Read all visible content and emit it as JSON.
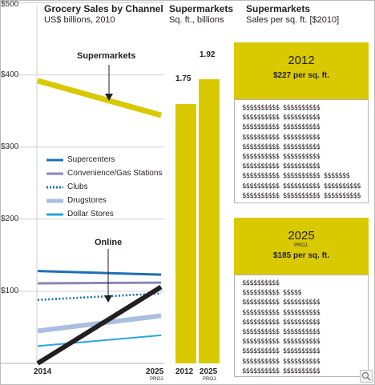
{
  "left_chart": {
    "title": "Grocery Sales by Channel",
    "subtitle": "US$ billions, 2010",
    "annotation_supermarkets": "Supermarkets",
    "annotation_online": "Online",
    "x_start_label": "2014",
    "x_end_label": "2025",
    "x_end_sub": "PROJ."
  },
  "middle_chart": {
    "title": "Supermarkets",
    "subtitle": "Sq. ft., billions",
    "bar1_label": "1.75",
    "bar2_label": "1.92",
    "x1_label": "2012",
    "x2_label": "2025",
    "x2_sub": "PROJ."
  },
  "right_panel": {
    "title": "Supermarkets",
    "subtitle": "Sales per sq. ft. [$2010]",
    "box1_year": "2012",
    "box1_value": "$227 per sq. ft.",
    "box1_symbols": [
      "$$$$$$$$$$ $$$$$$$$$$",
      "$$$$$$$$$$ $$$$$$$$$$",
      "$$$$$$$$$$ $$$$$$$$$$",
      "$$$$$$$$$$ $$$$$$$$$$",
      "$$$$$$$$$$ $$$$$$$$$$",
      "$$$$$$$$$$ $$$$$$$$$$",
      "$$$$$$$$$$ $$$$$$$$$$",
      "$$$$$$$$$$ $$$$$$$$$$ $$$$$$$",
      "$$$$$$$$$$ $$$$$$$$$$ $$$$$$$$$$",
      "$$$$$$$$$$ $$$$$$$$$$ $$$$$$$$$$"
    ],
    "box2_year": "2025",
    "box2_proj": "PROJ.",
    "box2_value": "$185 per sq. ft.",
    "box2_symbols": [
      "$$$$$$$$$$",
      "$$$$$$$$$$ $$$$$",
      "$$$$$$$$$$ $$$$$$$$$$",
      "$$$$$$$$$$ $$$$$$$$$$",
      "$$$$$$$$$$ $$$$$$$$$$",
      "$$$$$$$$$$ $$$$$$$$$$",
      "$$$$$$$$$$ $$$$$$$$$$",
      "$$$$$$$$$$ $$$$$$$$$$",
      "$$$$$$$$$$ $$$$$$$$$$",
      "$$$$$$$$$$ $$$$$$$$$$"
    ]
  },
  "colors": {
    "supermarkets": "#d9c900",
    "supercenters": "#1f6fb2",
    "convenience": "#8e86b5",
    "clubs": "#1f6fb2",
    "drugstores": "#a9bfdf",
    "dollar_stores": "#2aa6dc",
    "online": "#231f20"
  },
  "chart_data": [
    {
      "type": "line",
      "title": "Grocery Sales by Channel",
      "subtitle": "US$ billions, 2010",
      "x": [
        "2014",
        "2025 PROJ."
      ],
      "ylim": [
        0,
        500
      ],
      "yticks": [
        "$500",
        "$400",
        "$300",
        "$200",
        "$100"
      ],
      "grid": true,
      "legend": "middle-left",
      "series": [
        {
          "name": "Supermarkets",
          "values": [
            392,
            344
          ],
          "color": "#d9c900",
          "style": "solid"
        },
        {
          "name": "Supercenters",
          "values": [
            128,
            123
          ],
          "color": "#1f6fb2",
          "style": "solid"
        },
        {
          "name": "Convenience/Gas Stations",
          "values": [
            111,
            112
          ],
          "color": "#8e86b5",
          "style": "solid"
        },
        {
          "name": "Clubs",
          "values": [
            88,
            97
          ],
          "color": "#1f6fb2",
          "style": "dotted"
        },
        {
          "name": "Drugstores",
          "values": [
            45,
            66
          ],
          "color": "#a9bfdf",
          "style": "solid"
        },
        {
          "name": "Dollar Stores",
          "values": [
            24,
            39
          ],
          "color": "#2aa6dc",
          "style": "solid"
        },
        {
          "name": "Online",
          "values": [
            0,
            106
          ],
          "color": "#231f20",
          "style": "solid"
        }
      ]
    },
    {
      "type": "bar",
      "title": "Supermarkets",
      "subtitle": "Sq. ft., billions",
      "categories": [
        "2012",
        "2025 PROJ."
      ],
      "values": [
        1.75,
        1.92
      ]
    }
  ]
}
